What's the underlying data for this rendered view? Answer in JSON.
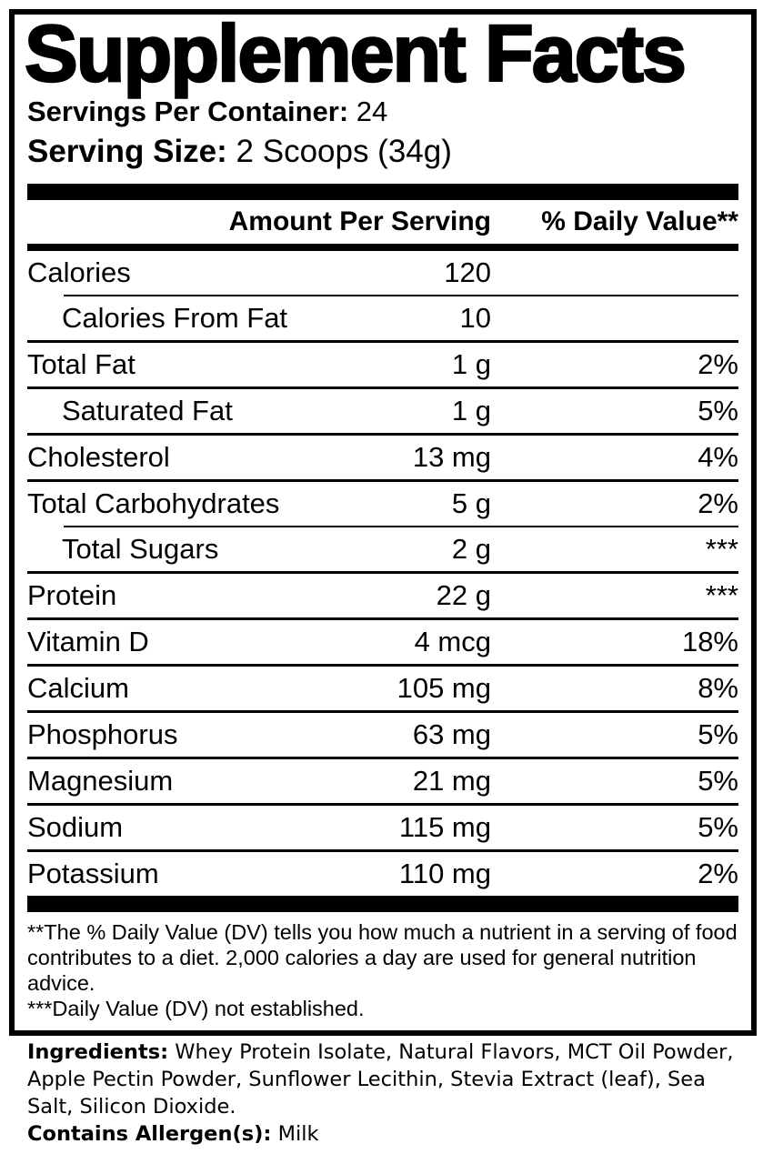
{
  "panel": {
    "title": "Supplement Facts",
    "servings_label": "Servings Per Container:",
    "servings_value": "24",
    "serving_size_label": "Serving Size:",
    "serving_size_value": "2 Scoops (34g)",
    "columns": {
      "amount": "Amount Per Serving",
      "daily_value": "% Daily Value**"
    },
    "rows": [
      {
        "name": "Calories",
        "amount": "120",
        "dv": "",
        "indent": false,
        "divider_above": "none"
      },
      {
        "name": "Calories From Fat",
        "amount": "10",
        "dv": "",
        "indent": true,
        "divider_above": "indent"
      },
      {
        "name": "Total Fat",
        "amount": "1 g",
        "dv": "2%",
        "indent": false,
        "divider_above": "full"
      },
      {
        "name": "Saturated Fat",
        "amount": "1 g",
        "dv": "5%",
        "indent": true,
        "divider_above": "full"
      },
      {
        "name": "Cholesterol",
        "amount": "13 mg",
        "dv": "4%",
        "indent": false,
        "divider_above": "full"
      },
      {
        "name": "Total Carbohydrates",
        "amount": "5 g",
        "dv": "2%",
        "indent": false,
        "divider_above": "full"
      },
      {
        "name": "Total Sugars",
        "amount": "2 g",
        "dv": "***",
        "indent": true,
        "divider_above": "indent"
      },
      {
        "name": "Protein",
        "amount": "22 g",
        "dv": "***",
        "indent": false,
        "divider_above": "full"
      },
      {
        "name": "Vitamin D",
        "amount": "4 mcg",
        "dv": "18%",
        "indent": false,
        "divider_above": "full"
      },
      {
        "name": "Calcium",
        "amount": "105 mg",
        "dv": "8%",
        "indent": false,
        "divider_above": "full"
      },
      {
        "name": "Phosphorus",
        "amount": "63 mg",
        "dv": "5%",
        "indent": false,
        "divider_above": "full"
      },
      {
        "name": "Magnesium",
        "amount": "21 mg",
        "dv": "5%",
        "indent": false,
        "divider_above": "full"
      },
      {
        "name": "Sodium",
        "amount": "115 mg",
        "dv": "5%",
        "indent": false,
        "divider_above": "full"
      },
      {
        "name": "Potassium",
        "amount": "110 mg",
        "dv": "2%",
        "indent": false,
        "divider_above": "full"
      }
    ],
    "footnotes": [
      "**The % Daily Value (DV) tells you how much a nutrient in a serving of food contributes to a diet. 2,000 calories a day are used for general nutrition advice.",
      "***Daily Value (DV) not established."
    ]
  },
  "ingredients": {
    "label": "Ingredients:",
    "text": "Whey Protein Isolate, Natural Flavors, MCT Oil Powder, Apple Pectin Powder, Sunflower Lecithin, Stevia Extract (leaf), Sea Salt, Silicon Dioxide.",
    "allergen_label": "Contains Allergen(s):",
    "allergen_value": "Milk"
  },
  "colors": {
    "ink": "#000000",
    "paper": "#ffffff"
  }
}
